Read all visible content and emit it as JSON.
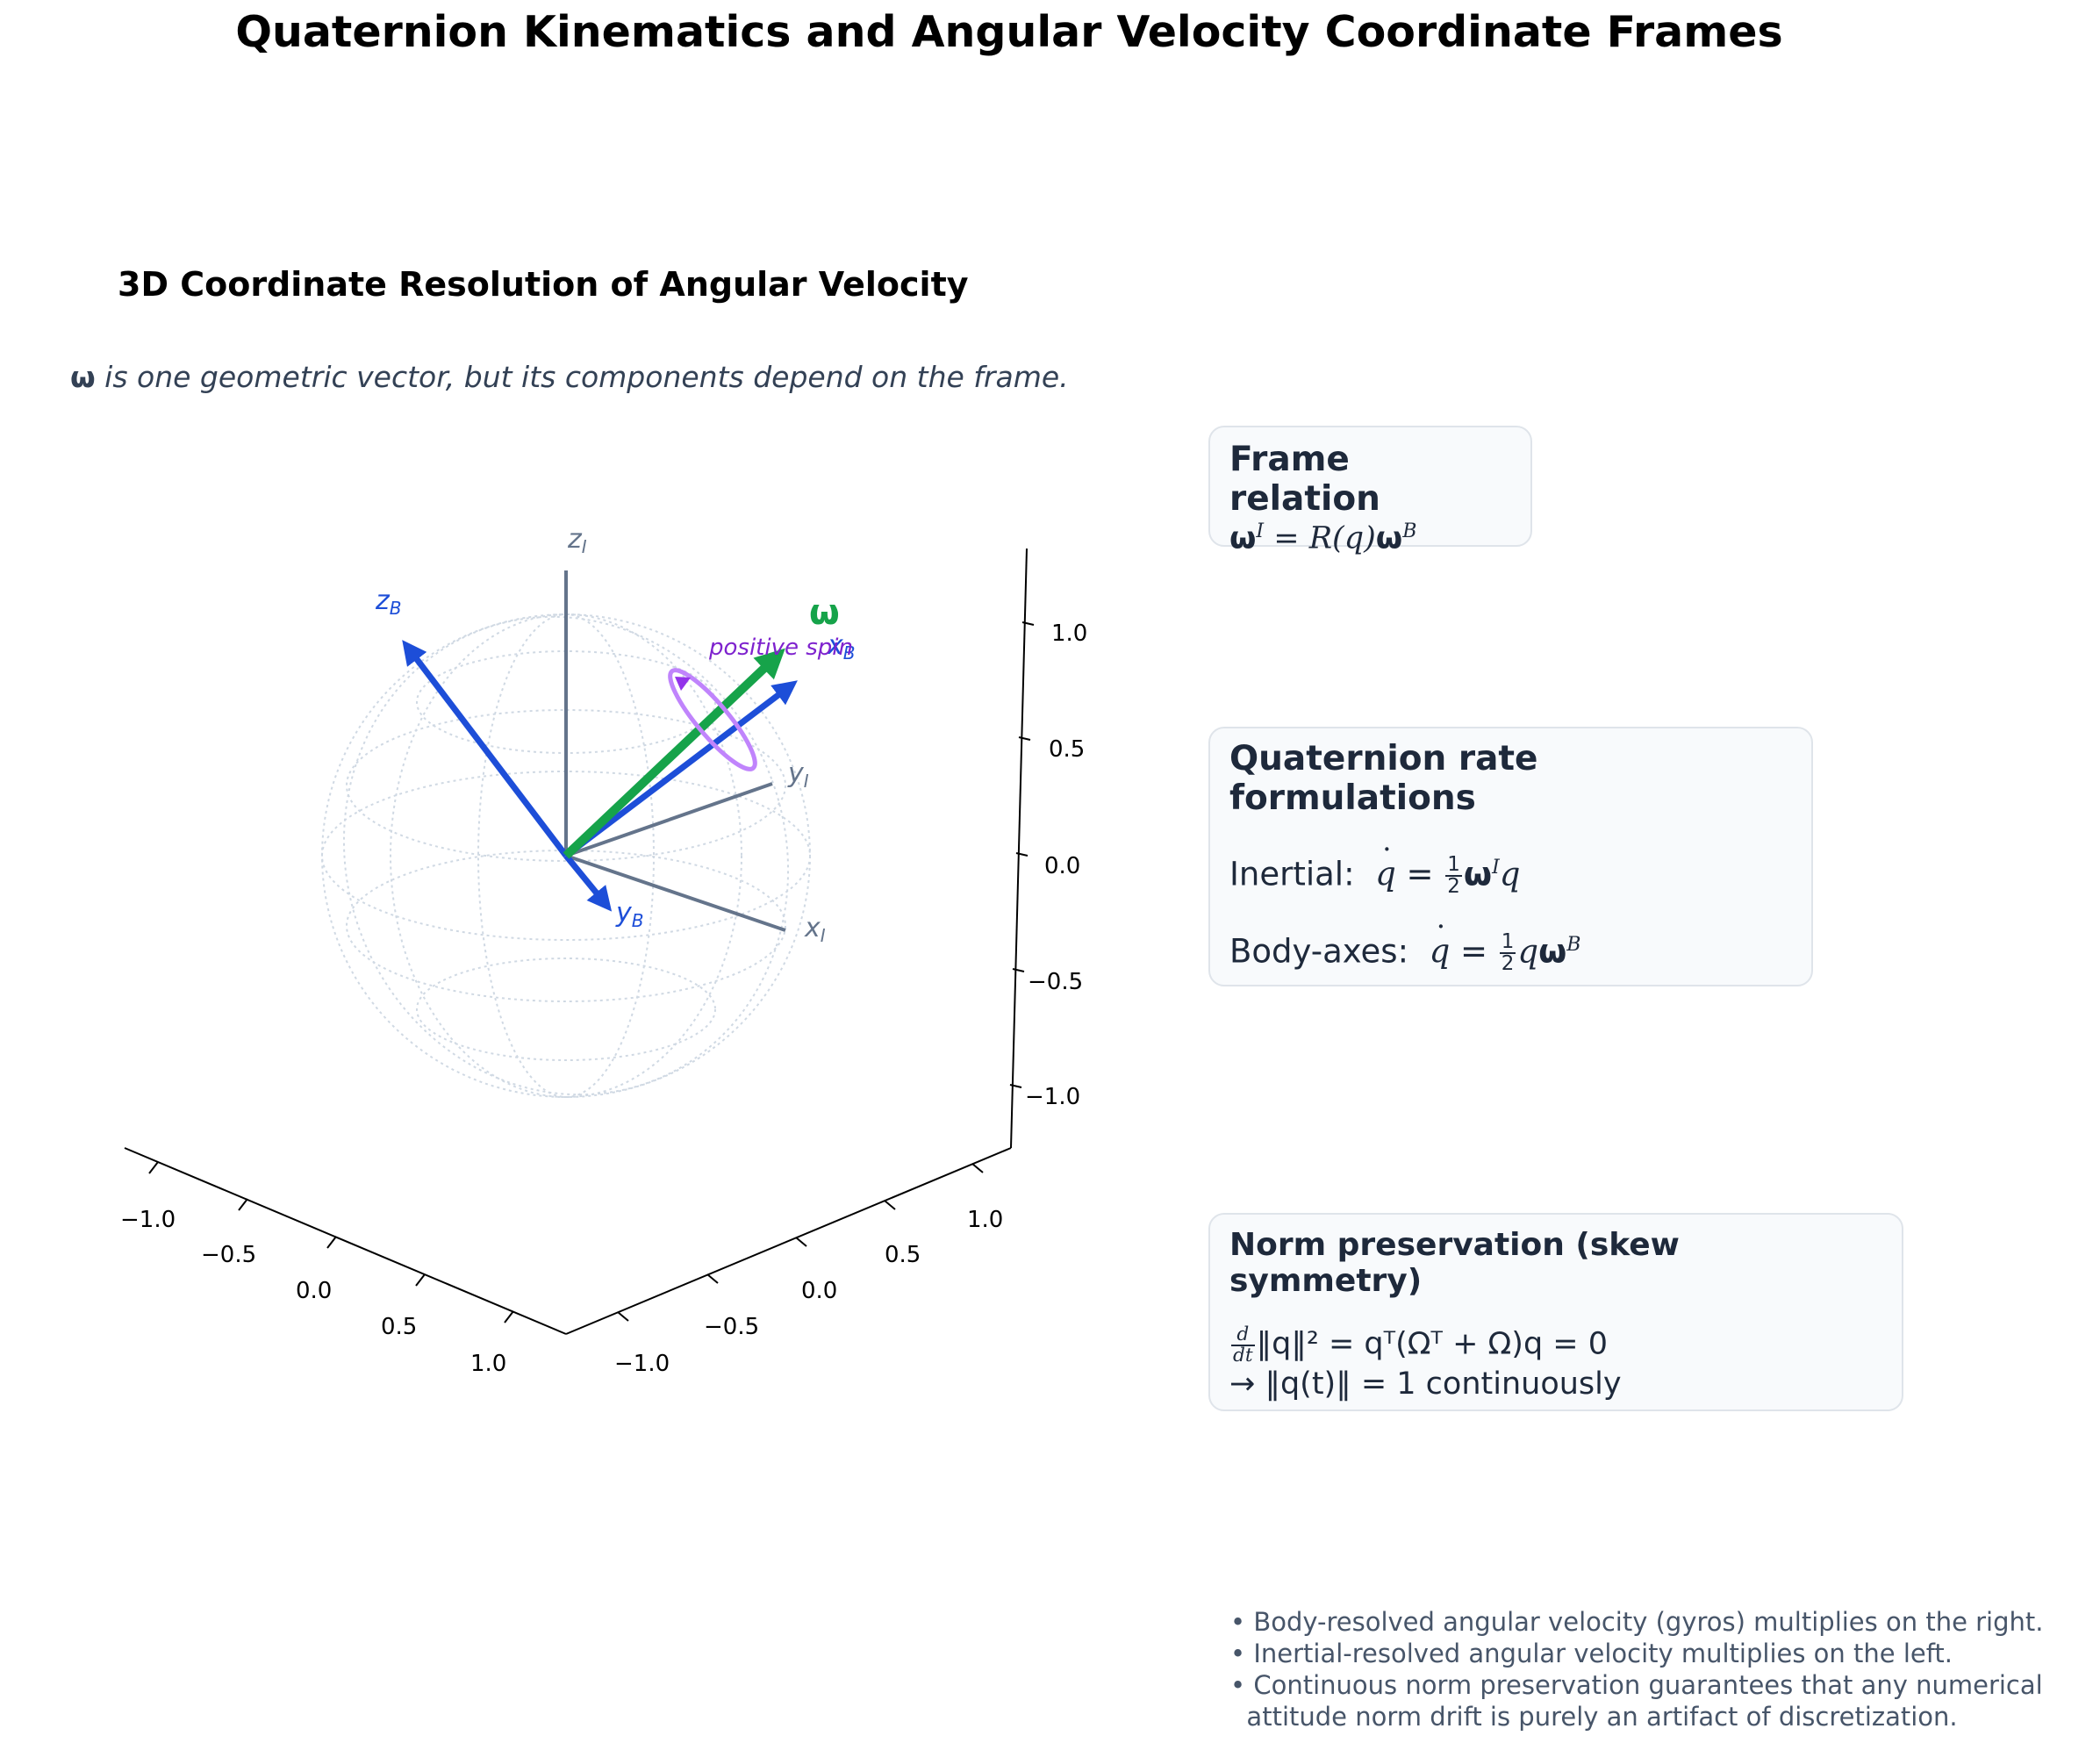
{
  "title": "Quaternion Kinematics and Angular Velocity Coordinate Frames",
  "panel": {
    "title": "3D Coordinate Resolution of Angular Velocity",
    "caption_symbol": "ω",
    "caption_text": " is one geometric vector, but its components depend on the frame."
  },
  "axes_labels": {
    "zI": "z",
    "zI_sub": "I",
    "yI": "y",
    "yI_sub": "I",
    "xI": "x",
    "xI_sub": "I",
    "zB": "z",
    "zB_sub": "B",
    "yB": "y",
    "yB_sub": "B",
    "xB": "x",
    "xB_sub": "B",
    "omega": "ω",
    "spin": "positive spin"
  },
  "ticks": {
    "x_axis": [
      "−1.0",
      "−0.5",
      "0.0",
      "0.5",
      "1.0"
    ],
    "y_axis": [
      "−1.0",
      "−0.5",
      "0.0",
      "0.5",
      "1.0"
    ],
    "z_axis": [
      "1.0",
      "0.5",
      "0.0",
      "−0.5",
      "−1.0"
    ]
  },
  "boxes": {
    "frame_relation": {
      "heading": "Frame relation",
      "eq_lhs": "ω",
      "eq_lhs_sup": "I",
      "eq_mid": " = R(q)",
      "eq_rhs": "ω",
      "eq_rhs_sup": "B"
    },
    "rates": {
      "heading": "Quaternion rate formulations",
      "inertial_label": "Inertial:",
      "body_label": "Body-axes:",
      "q": "q",
      "num": "1",
      "den": "2",
      "omega": "ω",
      "sup_I": "I",
      "sup_B": "B"
    },
    "norm": {
      "heading": "Norm preservation (skew symmetry)",
      "line1_lhs_num": "d",
      "line1_lhs_den": "dt",
      "line1_rest": "‖q‖² = qᵀ(Ωᵀ + Ω)q = 0",
      "line2": "→ ‖q(t)‖ = 1 continuously"
    }
  },
  "notes": [
    "• Body-resolved angular velocity (gyros) multiplies on the right.",
    "• Inertial-resolved angular velocity multiplies on the left.",
    "• Continuous norm preservation guarantees that any numerical",
    "  attitude norm drift is purely an artifact of discretization."
  ],
  "colors": {
    "inertial_axes": "#64748b",
    "body_axes": "#1d4ed8",
    "omega": "#16a34a",
    "spin": "#a855f7",
    "text_dark": "#1e293b"
  }
}
